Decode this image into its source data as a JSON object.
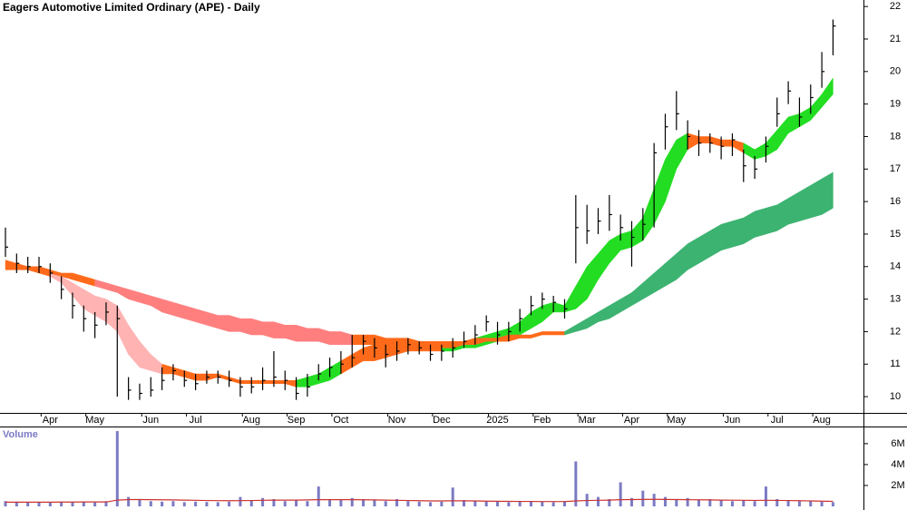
{
  "chart_data": [
    {
      "type": "ohlc",
      "title": "Eagers Automotive Limited Ordinary (APE) - Daily",
      "categories": [
        null,
        null,
        null,
        null,
        "Apr",
        null,
        null,
        null,
        "May",
        null,
        null,
        null,
        null,
        "Jun",
        null,
        null,
        null,
        "Jul",
        null,
        null,
        null,
        null,
        "Aug",
        null,
        null,
        null,
        "Sep",
        null,
        null,
        null,
        "Oct",
        null,
        null,
        null,
        null,
        "Nov",
        null,
        null,
        null,
        "Dec",
        null,
        null,
        null,
        null,
        "2025",
        null,
        null,
        null,
        "Feb",
        null,
        null,
        null,
        "Mar",
        null,
        null,
        null,
        "Apr",
        null,
        null,
        null,
        "May",
        null,
        null,
        null,
        null,
        "Jun",
        null,
        null,
        null,
        "Jul",
        null,
        null,
        null,
        "Aug",
        null
      ],
      "high": [
        15.2,
        14.4,
        14.3,
        14.3,
        14.1,
        13.7,
        13.2,
        12.8,
        12.6,
        12.9,
        12.8,
        10.6,
        10.4,
        10.6,
        10.9,
        11.0,
        10.8,
        10.7,
        10.8,
        10.8,
        10.8,
        10.6,
        10.6,
        10.9,
        11.4,
        10.8,
        10.6,
        10.7,
        11.0,
        11.2,
        11.4,
        11.9,
        11.9,
        11.8,
        11.6,
        11.7,
        11.8,
        11.7,
        11.6,
        11.6,
        11.8,
        12.0,
        12.2,
        12.5,
        12.3,
        12.3,
        12.7,
        13.1,
        13.2,
        13.1,
        13.0,
        16.2,
        15.9,
        15.8,
        16.2,
        15.6,
        15.4,
        15.8,
        17.8,
        18.7,
        19.4,
        18.5,
        18.2,
        18.1,
        18.0,
        18.1,
        17.6,
        17.4,
        18.0,
        19.2,
        19.7,
        19.2,
        19.6,
        20.6,
        21.6
      ],
      "low": [
        14.3,
        13.8,
        13.8,
        13.8,
        13.5,
        13.0,
        12.4,
        12.0,
        11.8,
        12.2,
        10.0,
        9.9,
        9.9,
        10.0,
        10.2,
        10.5,
        10.3,
        10.2,
        10.4,
        10.4,
        10.3,
        10.0,
        10.1,
        10.2,
        10.3,
        10.2,
        9.9,
        10.0,
        10.5,
        10.6,
        10.7,
        10.9,
        11.3,
        11.2,
        10.9,
        11.1,
        11.3,
        11.3,
        11.1,
        11.1,
        11.2,
        11.5,
        11.6,
        12.0,
        11.6,
        11.7,
        12.0,
        12.5,
        12.7,
        12.6,
        12.4,
        14.1,
        14.7,
        15.0,
        15.1,
        14.8,
        14.0,
        14.8,
        15.2,
        17.6,
        18.2,
        17.6,
        17.4,
        17.5,
        17.3,
        17.4,
        16.6,
        16.7,
        17.2,
        18.3,
        19.0,
        18.3,
        18.7,
        19.5,
        20.5
      ],
      "close": [
        14.6,
        14.1,
        14.0,
        14.0,
        13.8,
        13.3,
        12.8,
        12.4,
        12.2,
        12.6,
        12.4,
        10.2,
        10.1,
        10.2,
        10.5,
        10.8,
        10.5,
        10.4,
        10.6,
        10.6,
        10.5,
        10.3,
        10.3,
        10.5,
        10.6,
        10.5,
        10.1,
        10.3,
        10.7,
        10.9,
        11.0,
        11.2,
        11.7,
        11.5,
        11.3,
        11.4,
        11.6,
        11.5,
        11.3,
        11.4,
        11.5,
        11.7,
        11.9,
        12.3,
        11.9,
        12.0,
        12.4,
        12.8,
        13.0,
        12.9,
        12.7,
        15.2,
        15.1,
        15.4,
        15.6,
        15.2,
        14.9,
        15.3,
        17.5,
        18.3,
        18.7,
        18.0,
        17.8,
        17.8,
        17.7,
        17.9,
        17.1,
        17.0,
        17.7,
        18.7,
        19.4,
        18.6,
        19.2,
        20.0,
        21.4
      ],
      "color": "#000000",
      "bands": [
        {
          "upper": [
            14.2,
            14.1,
            14.0,
            14.0,
            13.9,
            13.7,
            13.5,
            13.3,
            13.1,
            13.0,
            12.8,
            12.2,
            11.7,
            11.3,
            11.0,
            10.9,
            10.8,
            10.7,
            10.7,
            10.7,
            10.6,
            10.5,
            10.5,
            10.5,
            10.5,
            10.5,
            10.5,
            10.6,
            10.7,
            10.9,
            11.1,
            11.3,
            11.5,
            11.6,
            11.6,
            11.6,
            11.6,
            11.6,
            11.6,
            11.5,
            11.6,
            11.7,
            11.8,
            11.9,
            12.0,
            12.1,
            12.3,
            12.6,
            12.8,
            12.9,
            12.8,
            13.4,
            14.0,
            14.4,
            14.8,
            15.0,
            15.1,
            15.5,
            16.4,
            17.3,
            17.9,
            18.1,
            18.0,
            18.0,
            17.9,
            17.9,
            17.8,
            17.6,
            17.8,
            18.2,
            18.6,
            18.7,
            18.9,
            19.3,
            19.8
          ],
          "lower": [
            13.9,
            13.9,
            13.9,
            13.8,
            13.7,
            13.5,
            13.1,
            12.7,
            12.5,
            12.3,
            12.0,
            11.3,
            10.9,
            10.8,
            10.7,
            10.7,
            10.6,
            10.5,
            10.5,
            10.6,
            10.5,
            10.4,
            10.4,
            10.4,
            10.4,
            10.4,
            10.3,
            10.3,
            10.4,
            10.5,
            10.7,
            10.9,
            11.1,
            11.1,
            11.2,
            11.3,
            11.4,
            11.4,
            11.4,
            11.4,
            11.4,
            11.5,
            11.5,
            11.6,
            11.7,
            11.8,
            11.9,
            12.1,
            12.3,
            12.6,
            12.6,
            12.7,
            13.0,
            13.6,
            14.1,
            14.5,
            14.6,
            14.8,
            15.3,
            16.0,
            17.0,
            17.6,
            17.8,
            17.8,
            17.7,
            17.7,
            17.5,
            17.3,
            17.4,
            17.6,
            18.1,
            18.3,
            18.5,
            18.9,
            19.3
          ],
          "colors": [
            "#22dd22",
            "#ff6a1a",
            "#ff6a1a",
            "#ff6a1a",
            "#ff6a1a",
            "#ffb3b3",
            "#ffb3b3",
            "#ffb3b3",
            "#ffb3b3",
            "#ffb3b3",
            "#ffb3b3",
            "#ffb3b3",
            "#ffb3b3",
            "#ffb3b3",
            "#ffb3b3",
            "#ff6a1a",
            "#ff6a1a",
            "#ff6a1a",
            "#ff6a1a",
            "#ff6a1a",
            "#ff6a1a",
            "#ff6a1a",
            "#ff6a1a",
            "#ff6a1a",
            "#ff6a1a",
            "#ff6a1a",
            "#ff6a1a",
            "#22dd22",
            "#22dd22",
            "#22dd22",
            "#22dd22",
            "#ff6a1a",
            "#ff6a1a",
            "#ff6a1a",
            "#ff6a1a",
            "#ff6a1a",
            "#ff6a1a",
            "#ff6a1a",
            "#ff6a1a",
            "#ff6a1a",
            "#22dd22",
            "#22dd22",
            "#22dd22",
            "#22dd22",
            "#22dd22",
            "#22dd22",
            "#22dd22",
            "#22dd22",
            "#22dd22",
            "#22dd22",
            "#22dd22",
            "#22dd22",
            "#22dd22",
            "#22dd22",
            "#22dd22",
            "#22dd22",
            "#22dd22",
            "#22dd22",
            "#22dd22",
            "#22dd22",
            "#22dd22",
            "#22dd22",
            "#ff6a1a",
            "#ff6a1a",
            "#ff6a1a",
            "#ff6a1a",
            "#ff6a1a",
            "#22dd22",
            "#22dd22",
            "#22dd22",
            "#22dd22",
            "#22dd22",
            "#22dd22",
            "#22dd22",
            "#22dd22"
          ]
        },
        {
          "upper": [
            null,
            null,
            14.0,
            14.0,
            13.9,
            13.8,
            13.8,
            13.7,
            13.6,
            13.5,
            13.4,
            13.3,
            13.2,
            13.1,
            13.0,
            12.9,
            12.8,
            12.7,
            12.6,
            12.5,
            12.5,
            12.4,
            12.4,
            12.3,
            12.3,
            12.2,
            12.2,
            12.1,
            12.1,
            12.0,
            12.0,
            11.9,
            11.9,
            11.9,
            11.8,
            11.8,
            11.8,
            11.7,
            11.7,
            11.7,
            11.7,
            11.7,
            11.8,
            11.8,
            11.8,
            11.9,
            11.9,
            11.9,
            12.0,
            12.0,
            12.0,
            12.2,
            12.4,
            12.6,
            12.8,
            13.0,
            13.2,
            13.5,
            13.8,
            14.1,
            14.4,
            14.7,
            14.9,
            15.1,
            15.3,
            15.4,
            15.5,
            15.7,
            15.8,
            15.9,
            16.1,
            16.3,
            16.5,
            16.7,
            16.9
          ],
          "lower": [
            null,
            null,
            13.9,
            13.9,
            13.8,
            13.7,
            13.6,
            13.5,
            13.4,
            13.3,
            13.2,
            13.0,
            12.9,
            12.8,
            12.6,
            12.5,
            12.4,
            12.3,
            12.2,
            12.1,
            12.0,
            12.0,
            11.9,
            11.9,
            11.8,
            11.8,
            11.7,
            11.7,
            11.7,
            11.6,
            11.6,
            11.6,
            11.6,
            11.6,
            11.6,
            11.6,
            11.6,
            11.5,
            11.5,
            11.5,
            11.5,
            11.6,
            11.6,
            11.7,
            11.7,
            11.7,
            11.8,
            11.8,
            11.9,
            11.9,
            11.9,
            12.0,
            12.1,
            12.3,
            12.4,
            12.6,
            12.8,
            13.0,
            13.2,
            13.4,
            13.6,
            13.9,
            14.1,
            14.3,
            14.5,
            14.6,
            14.7,
            14.9,
            15.0,
            15.1,
            15.3,
            15.4,
            15.5,
            15.6,
            15.8
          ],
          "colors": [
            null,
            null,
            "#ff6a1a",
            "#ff6a1a",
            "#ff6a1a",
            "#ff6a1a",
            "#ff6a1a",
            "#ff6a1a",
            "#ff6a1a",
            "#ff7f7f",
            "#ff7f7f",
            "#ff7f7f",
            "#ff7f7f",
            "#ff7f7f",
            "#ff7f7f",
            "#ff7f7f",
            "#ff7f7f",
            "#ff7f7f",
            "#ff7f7f",
            "#ff7f7f",
            "#ff7f7f",
            "#ff7f7f",
            "#ff7f7f",
            "#ff7f7f",
            "#ff7f7f",
            "#ff7f7f",
            "#ff7f7f",
            "#ff7f7f",
            "#ff7f7f",
            "#ff7f7f",
            "#ff7f7f",
            "#ff7f7f",
            "#ff6a1a",
            "#ff6a1a",
            "#ff6a1a",
            "#ff6a1a",
            "#ff6a1a",
            "#ff6a1a",
            "#ff6a1a",
            "#ff6a1a",
            "#ff6a1a",
            "#ff6a1a",
            "#ff6a1a",
            "#ff6a1a",
            "#ff6a1a",
            "#ff6a1a",
            "#ff6a1a",
            "#ff6a1a",
            "#ff6a1a",
            "#ff6a1a",
            "#ff6a1a",
            "#3cb371",
            "#3cb371",
            "#3cb371",
            "#3cb371",
            "#3cb371",
            "#3cb371",
            "#3cb371",
            "#3cb371",
            "#3cb371",
            "#3cb371",
            "#3cb371",
            "#3cb371",
            "#3cb371",
            "#3cb371",
            "#3cb371",
            "#3cb371",
            "#3cb371",
            "#3cb371",
            "#3cb371",
            "#3cb371",
            "#3cb371",
            "#3cb371",
            "#3cb371",
            "#3cb371"
          ]
        }
      ],
      "ylim": [
        9.5,
        22.2
      ],
      "yticks": [
        10,
        11,
        12,
        13,
        14,
        15,
        16,
        17,
        18,
        19,
        20,
        21,
        22
      ]
    },
    {
      "type": "bar",
      "title": "Volume",
      "values": [
        500000,
        450000,
        400000,
        420000,
        380000,
        450000,
        400000,
        420000,
        380000,
        500000,
        7200000,
        900000,
        700000,
        500000,
        450000,
        500000,
        400000,
        450000,
        420000,
        400000,
        450000,
        900000,
        600000,
        800000,
        700000,
        500000,
        600000,
        500000,
        1900000,
        700000,
        600000,
        800000,
        700000,
        600000,
        500000,
        700000,
        500000,
        450000,
        400000,
        450000,
        1800000,
        600000,
        500000,
        500000,
        450000,
        400000,
        450000,
        500000,
        450000,
        400000,
        500000,
        4300000,
        1200000,
        900000,
        700000,
        2300000,
        800000,
        1500000,
        1200000,
        900000,
        700000,
        800000,
        600000,
        700000,
        600000,
        500000,
        600000,
        500000,
        1900000,
        700000,
        600000,
        500000,
        500000,
        450000,
        400000
      ],
      "color": "#7b7bc4",
      "average": {
        "color": "#cc3333",
        "values": [
          400000,
          400000,
          400000,
          400000,
          400000,
          410000,
          410000,
          420000,
          420000,
          420000,
          600000,
          650000,
          650000,
          640000,
          630000,
          620000,
          600000,
          580000,
          560000,
          550000,
          540000,
          550000,
          560000,
          580000,
          600000,
          600000,
          600000,
          620000,
          640000,
          640000,
          640000,
          640000,
          630000,
          620000,
          600000,
          580000,
          560000,
          540000,
          520000,
          520000,
          530000,
          530000,
          520000,
          500000,
          490000,
          480000,
          470000,
          470000,
          460000,
          460000,
          460000,
          520000,
          560000,
          580000,
          600000,
          640000,
          650000,
          660000,
          670000,
          660000,
          650000,
          640000,
          630000,
          620000,
          600000,
          590000,
          580000,
          570000,
          580000,
          570000,
          560000,
          540000,
          520000,
          500000,
          480000
        ]
      },
      "ylim": [
        0,
        7900000
      ],
      "yticks": [
        {
          "value": 2000000,
          "label": "2M"
        },
        {
          "value": 4000000,
          "label": "4M"
        },
        {
          "value": 6000000,
          "label": "6M"
        }
      ]
    }
  ]
}
